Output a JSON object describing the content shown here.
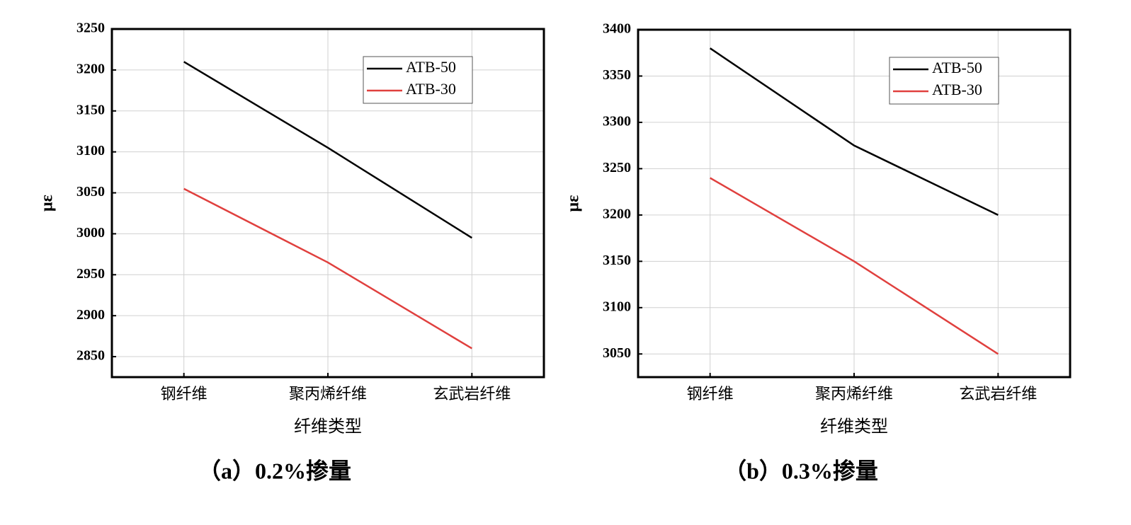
{
  "chart_data": [
    {
      "type": "line",
      "caption": "（a）0.2%掺量",
      "x_label": "纤维类型",
      "y_label": "με",
      "categories": [
        "钢纤维",
        "聚丙烯纤维",
        "玄武岩纤维"
      ],
      "series": [
        {
          "name": "ATB-50",
          "color": "#000000",
          "values": [
            3210,
            3105,
            2995
          ]
        },
        {
          "name": "ATB-30",
          "color": "#e0403e",
          "values": [
            3055,
            2965,
            2860
          ]
        }
      ],
      "ylim": [
        2825,
        3250
      ],
      "yticks": [
        2850,
        2900,
        2950,
        3000,
        3050,
        3100,
        3150,
        3200,
        3250
      ],
      "grid": true,
      "legend": "upper right"
    },
    {
      "type": "line",
      "caption": "（b）0.3%掺量",
      "x_label": "纤维类型",
      "y_label": "με",
      "categories": [
        "钢纤维",
        "聚丙烯纤维",
        "玄武岩纤维"
      ],
      "series": [
        {
          "name": "ATB-50",
          "color": "#000000",
          "values": [
            3380,
            3275,
            3200
          ]
        },
        {
          "name": "ATB-30",
          "color": "#e0403e",
          "values": [
            3240,
            3150,
            3050
          ]
        }
      ],
      "ylim": [
        3025,
        3400
      ],
      "yticks": [
        3050,
        3100,
        3150,
        3200,
        3250,
        3300,
        3350,
        3400
      ],
      "grid": true,
      "legend": "upper right"
    }
  ]
}
